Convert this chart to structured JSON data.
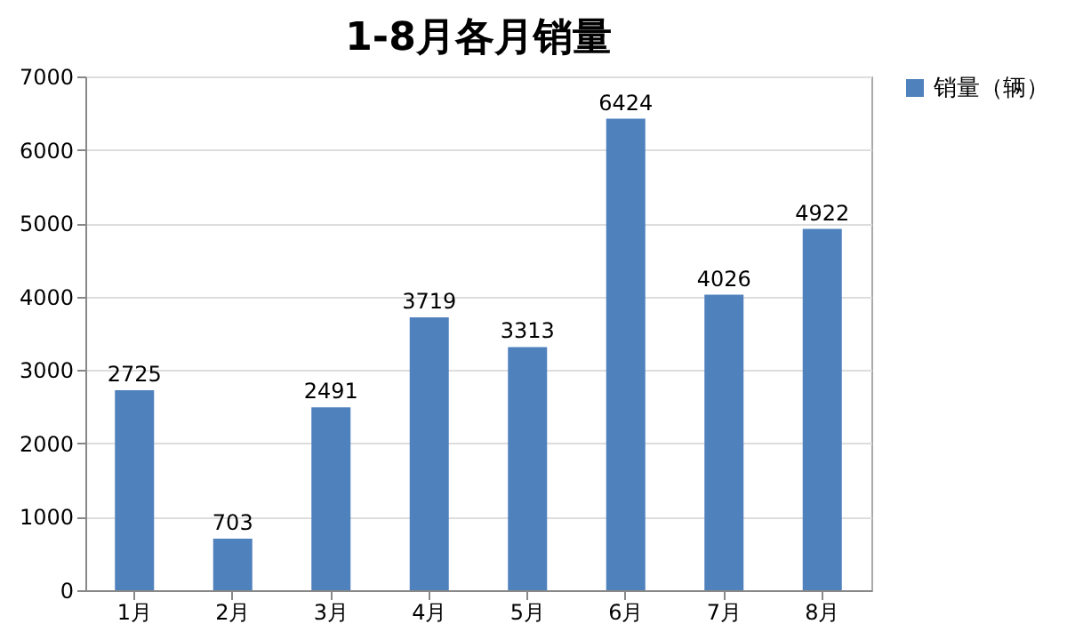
{
  "chart_data": {
    "type": "bar",
    "title": "1-8月各月销量",
    "categories": [
      "1月",
      "2月",
      "3月",
      "4月",
      "5月",
      "6月",
      "7月",
      "8月"
    ],
    "series": [
      {
        "name": "销量（辆）",
        "color": "#4f81bd",
        "values": [
          2725,
          703,
          2491,
          3719,
          3313,
          6424,
          4026,
          4922
        ]
      }
    ],
    "ylim": [
      0,
      7000
    ],
    "yticks": [
      0,
      1000,
      2000,
      3000,
      4000,
      5000,
      6000,
      7000
    ],
    "grid": "y",
    "legend": "right",
    "data_labels": true
  }
}
